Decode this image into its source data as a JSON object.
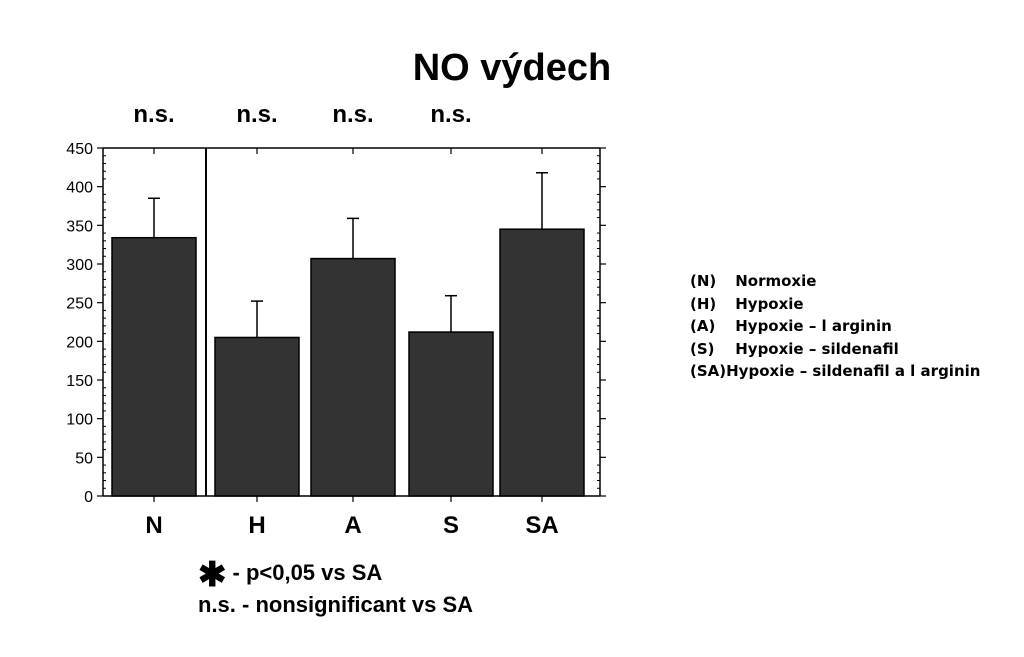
{
  "chart_data": {
    "type": "bar",
    "title": "NO výdech",
    "categories": [
      "N",
      "H",
      "A",
      "S",
      "SA"
    ],
    "values": [
      334,
      205,
      307,
      212,
      345
    ],
    "error_upper": [
      385,
      252,
      359,
      259,
      418
    ],
    "ylim": [
      0,
      450
    ],
    "yticks": [
      0,
      50,
      100,
      150,
      200,
      250,
      300,
      350,
      400,
      450
    ],
    "significance": [
      "n.s.",
      "n.s.",
      "n.s.",
      "n.s.",
      ""
    ],
    "xlabel": "",
    "ylabel": "",
    "bar_color": "#333333"
  },
  "legend": [
    {
      "code": "(N)",
      "label": "Normoxie"
    },
    {
      "code": "(H)",
      "label": "Hypoxie"
    },
    {
      "code": "(A)",
      "label": "Hypoxie – l arginin"
    },
    {
      "code": "(S)",
      "label": "Hypoxie – sildenafil"
    },
    {
      "code": "(SA)",
      "label": "Hypoxie – sildenafil a l arginin"
    }
  ],
  "footnote": {
    "star_symbol": "✱",
    "star_text": "- p<0,05 vs SA",
    "ns_text": "n.s. - nonsignificant vs SA"
  }
}
